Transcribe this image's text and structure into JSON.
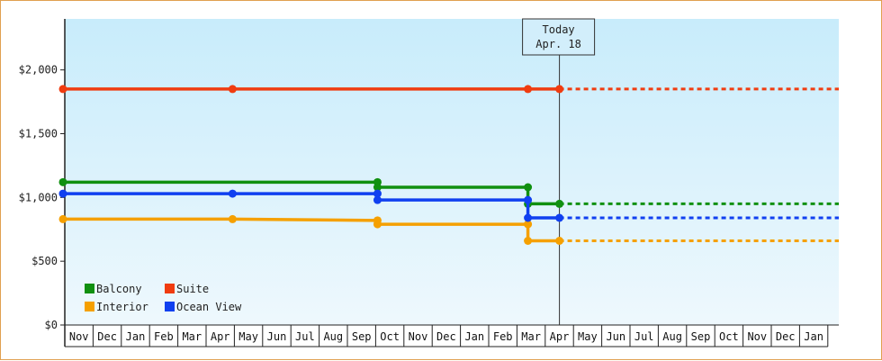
{
  "chart_data": {
    "type": "line",
    "y_ticks": [
      0,
      500,
      1000,
      1500,
      2000
    ],
    "y_tick_labels": [
      "$0",
      "$500",
      "$1,000",
      "$1,500",
      "$2,000"
    ],
    "ylim": [
      0,
      2400
    ],
    "x_start": "2016-11-01",
    "x_end": "2019-02-01",
    "months": [
      "Nov",
      "Dec",
      "Jan",
      "Feb",
      "Mar",
      "Apr",
      "May",
      "Jun",
      "Jul",
      "Aug",
      "Sep",
      "Oct",
      "Nov",
      "Dec",
      "Jan",
      "Feb",
      "Mar",
      "Apr",
      "May",
      "Jun",
      "Jul",
      "Aug",
      "Sep",
      "Oct",
      "Nov",
      "Dec",
      "Jan"
    ],
    "today": {
      "line1": "Today",
      "line2": "Apr. 18",
      "date": "2018-04-18"
    },
    "grid": false,
    "legend_position": "bottom-left",
    "series": [
      {
        "name": "Balcony",
        "color": "#109010",
        "points": [
          {
            "date": "2016-11-01",
            "value": 1120,
            "marker": true
          },
          {
            "date": "2017-10-05",
            "value": 1120,
            "marker": true
          },
          {
            "date": "2017-10-05",
            "value": 1080,
            "marker": true
          },
          {
            "date": "2018-03-15",
            "value": 1080,
            "marker": true
          },
          {
            "date": "2018-03-15",
            "value": 950,
            "marker": true
          },
          {
            "date": "2018-04-18",
            "value": 950,
            "marker": true
          }
        ],
        "projection": 950
      },
      {
        "name": "Suite",
        "color": "#f03c10",
        "points": [
          {
            "date": "2016-11-01",
            "value": 1850,
            "marker": true
          },
          {
            "date": "2017-05-01",
            "value": 1850,
            "marker": true
          },
          {
            "date": "2018-03-15",
            "value": 1850,
            "marker": true
          },
          {
            "date": "2018-04-18",
            "value": 1850,
            "marker": true
          }
        ],
        "projection": 1850
      },
      {
        "name": "Interior",
        "color": "#f5a000",
        "points": [
          {
            "date": "2016-11-01",
            "value": 830,
            "marker": true
          },
          {
            "date": "2017-05-01",
            "value": 830,
            "marker": true
          },
          {
            "date": "2017-10-05",
            "value": 820,
            "marker": true
          },
          {
            "date": "2017-10-05",
            "value": 790,
            "marker": true
          },
          {
            "date": "2018-03-15",
            "value": 790,
            "marker": true
          },
          {
            "date": "2018-03-15",
            "value": 660,
            "marker": true
          },
          {
            "date": "2018-04-18",
            "value": 660,
            "marker": true
          }
        ],
        "projection": 660
      },
      {
        "name": "Ocean View",
        "color": "#1040f0",
        "points": [
          {
            "date": "2016-11-01",
            "value": 1030,
            "marker": true
          },
          {
            "date": "2017-05-01",
            "value": 1030,
            "marker": true
          },
          {
            "date": "2017-10-05",
            "value": 1030,
            "marker": true
          },
          {
            "date": "2017-10-05",
            "value": 980,
            "marker": true
          },
          {
            "date": "2018-03-15",
            "value": 980,
            "marker": true
          },
          {
            "date": "2018-03-15",
            "value": 840,
            "marker": true
          },
          {
            "date": "2018-04-18",
            "value": 840,
            "marker": true
          }
        ],
        "projection": 840
      }
    ],
    "legend": [
      {
        "label": "Balcony",
        "color": "#109010"
      },
      {
        "label": "Suite",
        "color": "#f03c10"
      },
      {
        "label": "Interior",
        "color": "#f5a000"
      },
      {
        "label": "Ocean View",
        "color": "#1040f0"
      }
    ]
  }
}
